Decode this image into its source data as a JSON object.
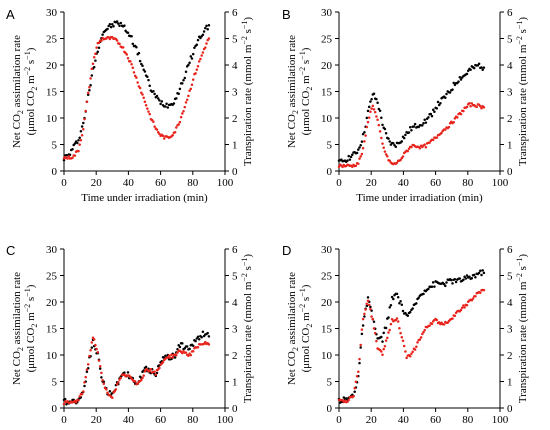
{
  "chart_data": [
    {
      "panel": "A",
      "type": "scatter",
      "xlabel": "Time under irradiation (min)",
      "ylabel_left": [
        "Net CO₂ assimilation rate",
        "(μmol CO₂ m⁻² s⁻¹)"
      ],
      "ylabel_right": "Transpiration rate (mmol m⁻² s⁻¹)",
      "xlim": [
        0,
        100
      ],
      "xticks": [
        "0",
        "20",
        "40",
        "60",
        "80",
        "100"
      ],
      "ylim_left": [
        0,
        30
      ],
      "yticks_left": [
        "0",
        "5",
        "10",
        "15",
        "20",
        "25",
        "30"
      ],
      "ylim_right": [
        0,
        6
      ],
      "yticks_right": [
        "0",
        "1",
        "2",
        "3",
        "4",
        "5",
        "6"
      ],
      "series": [
        {
          "axis": "left",
          "color": "#000000",
          "x": [
            0,
            3,
            6,
            9,
            12,
            15,
            18,
            21,
            24,
            27,
            30,
            33,
            36,
            39,
            42,
            45,
            48,
            51,
            54,
            57,
            60,
            63,
            66,
            69,
            72,
            75,
            78,
            81,
            84,
            87,
            90
          ],
          "y": [
            2.5,
            3,
            4.5,
            6,
            9,
            14,
            19,
            23,
            26,
            27,
            27.5,
            28,
            27.5,
            26.5,
            25,
            23,
            20.5,
            18,
            15.5,
            14,
            13,
            12.5,
            12.5,
            13.5,
            15.5,
            18,
            20.5,
            23,
            25,
            26.5,
            27.5
          ]
        },
        {
          "axis": "right",
          "color": "#e8231c",
          "x": [
            0,
            3,
            6,
            9,
            12,
            15,
            18,
            21,
            24,
            27,
            30,
            33,
            36,
            39,
            42,
            45,
            48,
            51,
            54,
            57,
            60,
            63,
            66,
            69,
            72,
            75,
            78,
            81,
            84,
            87,
            90
          ],
          "y": [
            0.5,
            0.5,
            0.55,
            0.8,
            1.6,
            2.9,
            4.1,
            4.8,
            5.0,
            5.0,
            5.0,
            4.9,
            4.7,
            4.4,
            4.0,
            3.5,
            3.0,
            2.5,
            2.0,
            1.6,
            1.35,
            1.25,
            1.3,
            1.5,
            1.9,
            2.45,
            3.0,
            3.6,
            4.1,
            4.6,
            5.0
          ]
        }
      ]
    },
    {
      "panel": "B",
      "type": "scatter",
      "xlabel": "Time under irradiation (min)",
      "ylabel_left": [
        "Net CO₂ assimilation rate",
        "(μmol CO₂ m⁻² s⁻¹)"
      ],
      "ylabel_right": "Transpiration rate (mmol m⁻² s⁻¹)",
      "xlim": [
        0,
        100
      ],
      "xticks": [
        "0",
        "20",
        "40",
        "60",
        "80",
        "100"
      ],
      "ylim_left": [
        0,
        30
      ],
      "yticks_left": [
        "0",
        "5",
        "10",
        "15",
        "20",
        "25",
        "30"
      ],
      "ylim_right": [
        0,
        6
      ],
      "yticks_right": [
        "0",
        "1",
        "2",
        "3",
        "4",
        "5",
        "6"
      ],
      "series": [
        {
          "axis": "left",
          "color": "#000000",
          "x": [
            0,
            3,
            6,
            9,
            12,
            15,
            18,
            21,
            24,
            27,
            30,
            33,
            36,
            39,
            42,
            45,
            48,
            51,
            54,
            57,
            60,
            63,
            66,
            69,
            72,
            75,
            78,
            81,
            84,
            87,
            90
          ],
          "y": [
            1.5,
            2,
            2.5,
            3,
            4,
            6.5,
            11,
            14.5,
            13,
            9,
            6,
            5,
            5,
            6,
            7,
            8,
            8.5,
            9,
            9.5,
            10.5,
            12,
            13,
            14,
            15,
            16.5,
            17.5,
            18,
            19,
            19.5,
            20,
            19.5
          ]
        },
        {
          "axis": "right",
          "color": "#e8231c",
          "x": [
            0,
            3,
            6,
            9,
            12,
            15,
            18,
            21,
            24,
            27,
            30,
            33,
            36,
            39,
            42,
            45,
            48,
            51,
            54,
            57,
            60,
            63,
            66,
            69,
            72,
            75,
            78,
            81,
            84,
            87,
            90
          ],
          "y": [
            0.2,
            0.2,
            0.2,
            0.2,
            0.3,
            0.8,
            1.9,
            2.5,
            1.9,
            1.0,
            0.5,
            0.25,
            0.3,
            0.5,
            0.75,
            0.95,
            0.95,
            0.9,
            0.95,
            1.1,
            1.25,
            1.45,
            1.6,
            1.75,
            1.95,
            2.15,
            2.35,
            2.5,
            2.5,
            2.45,
            2.4
          ]
        }
      ]
    },
    {
      "panel": "C",
      "type": "scatter",
      "xlabel": "Time under irradiation (min)",
      "ylabel_left": [
        "Net CO₂ assimilation rate",
        "(μmol CO₂ m⁻² s⁻¹)"
      ],
      "ylabel_right": "Transpiration rate (mmol m⁻² s⁻¹)",
      "xlim": [
        0,
        100
      ],
      "xticks": [
        "0",
        "20",
        "40",
        "60",
        "80",
        "100"
      ],
      "ylim_left": [
        0,
        30
      ],
      "yticks_left": [
        "0",
        "5",
        "10",
        "15",
        "20",
        "25",
        "30"
      ],
      "ylim_right": [
        0,
        6
      ],
      "yticks_right": [
        "0",
        "1",
        "2",
        "3",
        "4",
        "5",
        "6"
      ],
      "series": [
        {
          "axis": "left",
          "color": "#000000",
          "x": [
            0,
            3,
            6,
            9,
            12,
            15,
            18,
            21,
            24,
            27,
            30,
            33,
            36,
            39,
            42,
            45,
            48,
            51,
            54,
            57,
            60,
            63,
            66,
            69,
            72,
            75,
            78,
            81,
            84,
            87,
            90
          ],
          "y": [
            1.2,
            1.2,
            1.3,
            1.5,
            3,
            8,
            12.5,
            10,
            5,
            3,
            2.5,
            4.5,
            6.5,
            6.5,
            5.5,
            4.5,
            6,
            7.5,
            7,
            6.5,
            8.5,
            10,
            9.5,
            10,
            12,
            11.5,
            11,
            12.5,
            13.5,
            14,
            13.5
          ]
        },
        {
          "axis": "right",
          "color": "#e8231c",
          "x": [
            0,
            3,
            6,
            9,
            12,
            15,
            18,
            21,
            24,
            27,
            30,
            33,
            36,
            39,
            42,
            45,
            48,
            51,
            54,
            57,
            60,
            63,
            66,
            69,
            72,
            75,
            78,
            81,
            84,
            87,
            90
          ],
          "y": [
            0.2,
            0.2,
            0.22,
            0.3,
            0.65,
            1.7,
            2.7,
            2.1,
            1.0,
            0.55,
            0.45,
            0.85,
            1.2,
            1.25,
            1.1,
            0.9,
            1.1,
            1.45,
            1.4,
            1.3,
            1.6,
            1.9,
            1.95,
            2.0,
            2.15,
            2.1,
            2.0,
            2.2,
            2.35,
            2.45,
            2.4
          ]
        }
      ]
    },
    {
      "panel": "D",
      "type": "scatter",
      "xlabel": "Time under irradiation (min)",
      "ylabel_left": [
        "Net CO₂ assimilation rate",
        "(μmol CO₂ m⁻² s⁻¹)"
      ],
      "ylabel_right": "Transpiration rate (mmol m⁻² s⁻¹)",
      "xlim": [
        0,
        100
      ],
      "xticks": [
        "0",
        "20",
        "40",
        "60",
        "80",
        "100"
      ],
      "ylim_left": [
        0,
        30
      ],
      "yticks_left": [
        "0",
        "5",
        "10",
        "15",
        "20",
        "25",
        "30"
      ],
      "ylim_right": [
        0,
        6
      ],
      "yticks_right": [
        "0",
        "1",
        "2",
        "3",
        "4",
        "5",
        "6"
      ],
      "series": [
        {
          "axis": "left",
          "color": "#000000",
          "x": [
            0,
            3,
            6,
            9,
            12,
            15,
            18,
            21,
            24,
            27,
            30,
            33,
            36,
            39,
            42,
            45,
            48,
            51,
            54,
            57,
            60,
            63,
            66,
            69,
            72,
            75,
            78,
            81,
            84,
            87,
            90
          ],
          "y": [
            1.5,
            1.5,
            1.8,
            2.5,
            6,
            16,
            20.5,
            17,
            13,
            13,
            16.5,
            20.5,
            21.5,
            19,
            17.5,
            18,
            20,
            21.5,
            22.5,
            23,
            23.5,
            23.5,
            23.5,
            24,
            24,
            24,
            24.5,
            24.5,
            25,
            25.5,
            25.5
          ]
        },
        {
          "axis": "right",
          "color": "#e8231c",
          "x": [
            0,
            3,
            6,
            9,
            12,
            15,
            18,
            21,
            24,
            27,
            30,
            33,
            36,
            39,
            42,
            45,
            48,
            51,
            54,
            57,
            60,
            63,
            66,
            69,
            72,
            75,
            78,
            81,
            84,
            87,
            90
          ],
          "y": [
            0.25,
            0.25,
            0.3,
            0.5,
            1.4,
            3.4,
            4.1,
            3.3,
            2.3,
            2.0,
            2.7,
            3.3,
            3.4,
            2.7,
            1.9,
            2.0,
            2.35,
            2.7,
            3.0,
            3.2,
            3.3,
            3.2,
            3.2,
            3.35,
            3.5,
            3.7,
            3.85,
            4.0,
            4.2,
            4.35,
            4.45
          ]
        }
      ]
    }
  ]
}
